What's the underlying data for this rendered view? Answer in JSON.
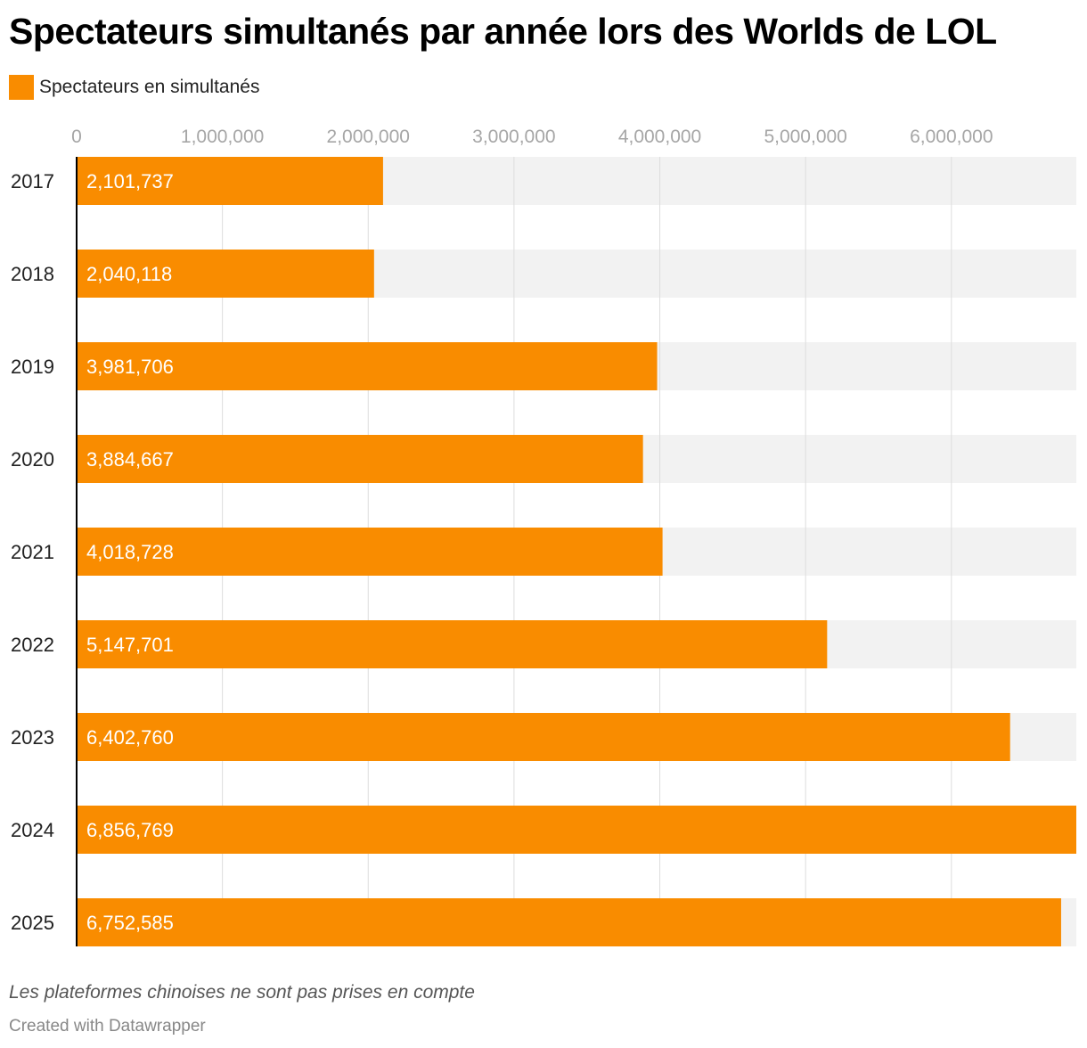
{
  "title": "Spectateurs simultanés par année lors des Worlds de LOL",
  "legend": {
    "label": "Spectateurs en simultanés",
    "color": "#f98c00"
  },
  "notes": "Les plateformes chinoises ne sont pas prises en compte",
  "credit": "Created with Datawrapper",
  "colors": {
    "bar": "#f98c00",
    "track": "#f2f2f2",
    "grid": "#dddddd",
    "axis": "#000000"
  },
  "chart_data": {
    "type": "bar",
    "orientation": "horizontal",
    "title": "Spectateurs simultanés par année lors des Worlds de LOL",
    "xlabel": "",
    "ylabel": "",
    "xlim": [
      0,
      6856769
    ],
    "grid": true,
    "legend_position": "top-left",
    "xticks": [
      {
        "value": 0,
        "label": "0"
      },
      {
        "value": 1000000,
        "label": "1,000,000"
      },
      {
        "value": 2000000,
        "label": "2,000,000"
      },
      {
        "value": 3000000,
        "label": "3,000,000"
      },
      {
        "value": 4000000,
        "label": "4,000,000"
      },
      {
        "value": 5000000,
        "label": "5,000,000"
      },
      {
        "value": 6000000,
        "label": "6,000,000"
      }
    ],
    "categories": [
      "2017",
      "2018",
      "2019",
      "2020",
      "2021",
      "2022",
      "2023",
      "2024",
      "2025"
    ],
    "series": [
      {
        "name": "Spectateurs en simultanés",
        "values": [
          2101737,
          2040118,
          3981706,
          3884667,
          4018728,
          5147701,
          6402760,
          6856769,
          6752585
        ],
        "labels": [
          "2,101,737",
          "2,040,118",
          "3,981,706",
          "3,884,667",
          "4,018,728",
          "5,147,701",
          "6,402,760",
          "6,856,769",
          "6,752,585"
        ]
      }
    ]
  }
}
